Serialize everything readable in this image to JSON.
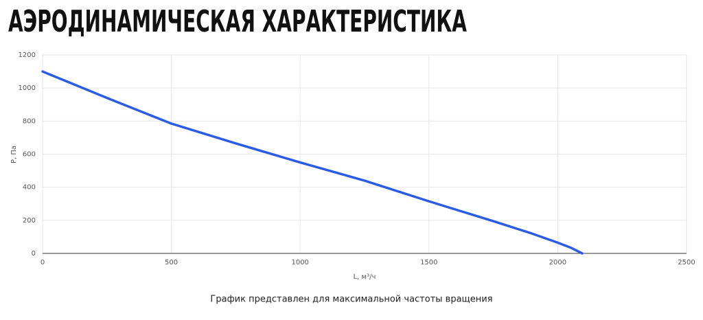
{
  "chart_data": {
    "type": "line",
    "title": "АЭРОДИНАМИЧЕСКАЯ ХАРАКТЕРИСТИКА",
    "x_label": "L, м³/ч",
    "y_label": "P, Па",
    "caption": "График представлен для максимальной частоты вращения",
    "x": [
      0,
      250,
      500,
      750,
      1000,
      1250,
      1500,
      1750,
      1900,
      2000,
      2050,
      2095
    ],
    "series": [
      {
        "name": "P",
        "color": "#2b5ce6",
        "values": [
          1100,
          940,
          785,
          665,
          550,
          440,
          315,
          195,
          120,
          65,
          35,
          0
        ]
      }
    ],
    "xlim": [
      0,
      2500
    ],
    "xticks": [
      0,
      500,
      1000,
      1500,
      2000,
      2500
    ],
    "ylim": [
      0,
      1200
    ],
    "yticks": [
      0,
      200,
      400,
      600,
      800,
      1000,
      1200
    ],
    "grid": true
  }
}
